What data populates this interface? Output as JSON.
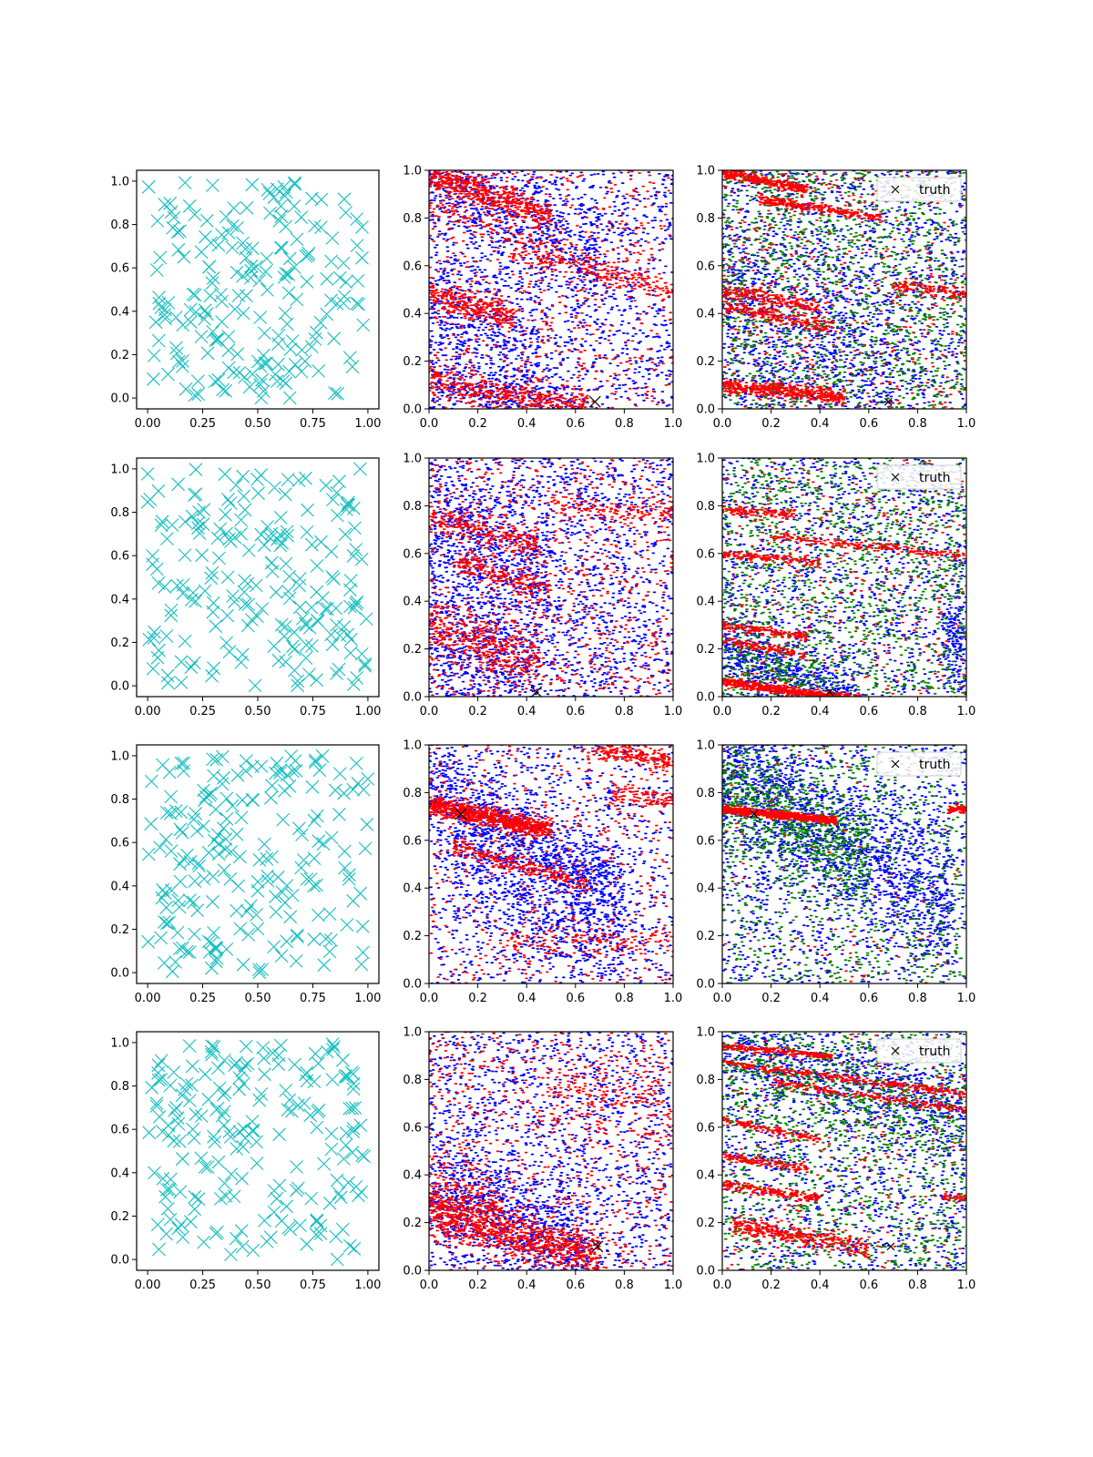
{
  "figure": {
    "rows": 4,
    "cols": 3
  },
  "colors": {
    "cyan": "#17bfbf",
    "blue": "#0000ff",
    "red": "#ff0000",
    "green": "#008000",
    "truth": "#000000"
  },
  "chart_data": [
    {
      "type": "scatter",
      "row": 1,
      "col": 1,
      "marker": "x",
      "color": "#17bfbf",
      "n_points": 200,
      "seed": 101,
      "xlim": [
        -0.05,
        1.05
      ],
      "ylim": [
        -0.05,
        1.05
      ],
      "xticks": [
        "0.00",
        "0.25",
        "0.50",
        "0.75",
        "1.00"
      ],
      "yticks": [
        "0.0",
        "0.2",
        "0.4",
        "0.6",
        "0.8",
        "1.0"
      ]
    },
    {
      "type": "scatter",
      "row": 1,
      "col": 2,
      "marker": "dot",
      "seed": 102,
      "xlim": [
        0,
        1
      ],
      "ylim": [
        0,
        1
      ],
      "xticks": [
        "0.0",
        "0.2",
        "0.4",
        "0.6",
        "0.8",
        "1.0"
      ],
      "yticks": [
        "0.0",
        "0.2",
        "0.4",
        "0.6",
        "0.8",
        "1.0"
      ],
      "series": [
        {
          "name": "blue",
          "color": "#0000ff",
          "uniform": 1400,
          "bands": [
            {
              "y0": 1.0,
              "slope": -0.55,
              "xmin": 0,
              "xmax": 0.7,
              "spread": 0.12,
              "n": 500
            },
            {
              "y0": 0.45,
              "slope": -0.6,
              "xmin": 0,
              "xmax": 0.45,
              "spread": 0.15,
              "n": 350
            },
            {
              "y0": 0.12,
              "slope": -0.25,
              "xmin": 0,
              "xmax": 0.6,
              "spread": 0.06,
              "n": 300
            }
          ]
        },
        {
          "name": "red",
          "color": "#ff0000",
          "uniform": 700,
          "bands": [
            {
              "y0": 0.98,
              "slope": -0.35,
              "xmin": 0,
              "xmax": 0.5,
              "spread": 0.03,
              "n": 500
            },
            {
              "y0": 0.48,
              "slope": -0.3,
              "xmin": 0,
              "xmax": 0.35,
              "spread": 0.03,
              "n": 300
            },
            {
              "y0": 0.12,
              "slope": -0.2,
              "xmin": 0,
              "xmax": 0.65,
              "spread": 0.04,
              "n": 450
            },
            {
              "y0": 0.85,
              "slope": -0.35,
              "xmin": 0,
              "xmax": 1,
              "spread": 0.02,
              "n": 150
            },
            {
              "y0": 0.74,
              "slope": -0.25,
              "xmin": 0.3,
              "xmax": 1,
              "spread": 0.02,
              "n": 150
            }
          ]
        }
      ],
      "truth": {
        "x": 0.68,
        "y": 0.03,
        "size": "large"
      }
    },
    {
      "type": "scatter",
      "row": 1,
      "col": 3,
      "marker": "dot",
      "seed": 103,
      "xlim": [
        0,
        1
      ],
      "ylim": [
        0,
        1
      ],
      "xticks": [
        "0.0",
        "0.2",
        "0.4",
        "0.6",
        "0.8",
        "1.0"
      ],
      "yticks": [
        "0.0",
        "0.2",
        "0.4",
        "0.6",
        "0.8",
        "1.0"
      ],
      "series": [
        {
          "name": "blue",
          "color": "#0000ff",
          "uniform": 1500,
          "bands": [
            {
              "y0": 0.5,
              "slope": -0.5,
              "xmin": 0,
              "xmax": 0.7,
              "spread": 0.2,
              "n": 500
            }
          ]
        },
        {
          "name": "green",
          "color": "#008000",
          "uniform": 1500,
          "bands": []
        },
        {
          "name": "red",
          "color": "#ff0000",
          "uniform": 500,
          "bands": [
            {
              "y0": 0.99,
              "slope": -0.2,
              "xmin": 0,
              "xmax": 0.35,
              "spread": 0.01,
              "n": 300
            },
            {
              "y0": 0.9,
              "slope": -0.15,
              "xmin": 0.15,
              "xmax": 0.65,
              "spread": 0.01,
              "n": 250
            },
            {
              "y0": 0.5,
              "slope": -0.2,
              "xmin": 0,
              "xmax": 0.4,
              "spread": 0.015,
              "n": 200
            },
            {
              "y0": 0.43,
              "slope": -0.2,
              "xmin": 0,
              "xmax": 0.45,
              "spread": 0.015,
              "n": 200
            },
            {
              "y0": 0.1,
              "slope": -0.1,
              "xmin": 0,
              "xmax": 0.5,
              "spread": 0.015,
              "n": 450
            },
            {
              "y0": 0.6,
              "slope": -0.12,
              "xmin": 0.7,
              "xmax": 1,
              "spread": 0.015,
              "n": 120
            }
          ]
        }
      ],
      "truth": {
        "x": 0.68,
        "y": 0.03,
        "size": "small"
      },
      "legend": {
        "label": "truth",
        "position": "top-right"
      }
    },
    {
      "type": "scatter",
      "row": 2,
      "col": 1,
      "marker": "x",
      "color": "#17bfbf",
      "n_points": 200,
      "seed": 201,
      "xlim": [
        -0.05,
        1.05
      ],
      "ylim": [
        -0.05,
        1.05
      ],
      "xticks": [
        "0.00",
        "0.25",
        "0.50",
        "0.75",
        "1.00"
      ],
      "yticks": [
        "0.0",
        "0.2",
        "0.4",
        "0.6",
        "0.8",
        "1.0"
      ]
    },
    {
      "type": "scatter",
      "row": 2,
      "col": 2,
      "marker": "dot",
      "seed": 202,
      "xlim": [
        0,
        1
      ],
      "ylim": [
        0,
        1
      ],
      "xticks": [
        "0.0",
        "0.2",
        "0.4",
        "0.6",
        "0.8",
        "1.0"
      ],
      "yticks": [
        "0.0",
        "0.2",
        "0.4",
        "0.6",
        "0.8",
        "1.0"
      ],
      "series": [
        {
          "name": "blue",
          "color": "#0000ff",
          "uniform": 1800,
          "bands": [
            {
              "y0": 0.7,
              "slope": -0.4,
              "xmin": 0,
              "xmax": 0.5,
              "spread": 0.15,
              "n": 400
            },
            {
              "y0": 0.25,
              "slope": -0.4,
              "xmin": 0,
              "xmax": 0.45,
              "spread": 0.12,
              "n": 300
            }
          ]
        },
        {
          "name": "red",
          "color": "#ff0000",
          "uniform": 800,
          "bands": [
            {
              "y0": 0.75,
              "slope": -0.25,
              "xmin": 0,
              "xmax": 0.45,
              "spread": 0.03,
              "n": 250
            },
            {
              "y0": 0.6,
              "slope": -0.3,
              "xmin": 0.1,
              "xmax": 0.5,
              "spread": 0.03,
              "n": 200
            },
            {
              "y0": 0.3,
              "slope": -0.35,
              "xmin": 0,
              "xmax": 0.45,
              "spread": 0.06,
              "n": 400
            },
            {
              "y0": 0.86,
              "slope": -0.1,
              "xmin": 0.5,
              "xmax": 1,
              "spread": 0.02,
              "n": 120
            }
          ]
        }
      ],
      "truth": {
        "x": 0.44,
        "y": 0.02,
        "size": "large"
      }
    },
    {
      "type": "scatter",
      "row": 2,
      "col": 3,
      "marker": "dot",
      "seed": 203,
      "xlim": [
        0,
        1
      ],
      "ylim": [
        0,
        1
      ],
      "xticks": [
        "0.0",
        "0.2",
        "0.4",
        "0.6",
        "0.8",
        "1.0"
      ],
      "yticks": [
        "0.0",
        "0.2",
        "0.4",
        "0.6",
        "0.8",
        "1.0"
      ],
      "series": [
        {
          "name": "blue",
          "color": "#0000ff",
          "uniform": 1300,
          "bands": [
            {
              "y0": 0.2,
              "slope": -0.4,
              "xmin": 0,
              "xmax": 0.55,
              "spread": 0.08,
              "n": 500
            },
            {
              "y0": 0.25,
              "slope": 0,
              "xmin": 0.9,
              "xmax": 1,
              "spread": 0.12,
              "n": 150
            }
          ]
        },
        {
          "name": "green",
          "color": "#008000",
          "uniform": 1400,
          "bands": [
            {
              "y0": 0.15,
              "slope": -0.3,
              "xmin": 0,
              "xmax": 0.4,
              "spread": 0.1,
              "n": 200
            }
          ]
        },
        {
          "name": "red",
          "color": "#ff0000",
          "uniform": 350,
          "bands": [
            {
              "y0": 0.06,
              "slope": -0.13,
              "xmin": 0,
              "xmax": 0.6,
              "spread": 0.01,
              "n": 600
            },
            {
              "y0": 0.78,
              "slope": -0.05,
              "xmin": 0,
              "xmax": 0.3,
              "spread": 0.01,
              "n": 120
            },
            {
              "y0": 0.69,
              "slope": -0.1,
              "xmin": 0.2,
              "xmax": 1,
              "spread": 0.01,
              "n": 200
            },
            {
              "y0": 0.6,
              "slope": -0.1,
              "xmin": 0,
              "xmax": 0.4,
              "spread": 0.01,
              "n": 150
            },
            {
              "y0": 0.3,
              "slope": -0.15,
              "xmin": 0,
              "xmax": 0.35,
              "spread": 0.01,
              "n": 150
            },
            {
              "y0": 0.24,
              "slope": -0.2,
              "xmin": 0,
              "xmax": 0.35,
              "spread": 0.01,
              "n": 120
            }
          ]
        }
      ],
      "truth": {
        "x": 0.44,
        "y": 0.02,
        "size": "small"
      },
      "legend": {
        "label": "truth",
        "position": "top-right"
      }
    },
    {
      "type": "scatter",
      "row": 3,
      "col": 1,
      "marker": "x",
      "color": "#17bfbf",
      "n_points": 200,
      "seed": 301,
      "xlim": [
        -0.05,
        1.05
      ],
      "ylim": [
        -0.05,
        1.05
      ],
      "xticks": [
        "0.00",
        "0.25",
        "0.50",
        "0.75",
        "1.00"
      ],
      "yticks": [
        "0.0",
        "0.2",
        "0.4",
        "0.6",
        "0.8",
        "1.0"
      ]
    },
    {
      "type": "scatter",
      "row": 3,
      "col": 2,
      "marker": "dot",
      "seed": 302,
      "xlim": [
        0,
        1
      ],
      "ylim": [
        0,
        1
      ],
      "xticks": [
        "0.0",
        "0.2",
        "0.4",
        "0.6",
        "0.8",
        "1.0"
      ],
      "yticks": [
        "0.0",
        "0.2",
        "0.4",
        "0.6",
        "0.8",
        "1.0"
      ],
      "series": [
        {
          "name": "blue",
          "color": "#0000ff",
          "uniform": 1100,
          "bands": [
            {
              "y0": 0.85,
              "slope": -0.6,
              "xmin": 0,
              "xmax": 0.8,
              "spread": 0.1,
              "n": 900
            },
            {
              "y0": 0.55,
              "slope": -0.5,
              "xmin": 0.1,
              "xmax": 0.8,
              "spread": 0.12,
              "n": 500
            }
          ]
        },
        {
          "name": "red",
          "color": "#ff0000",
          "uniform": 500,
          "bands": [
            {
              "y0": 0.75,
              "slope": -0.22,
              "xmin": 0,
              "xmax": 0.5,
              "spread": 0.02,
              "n": 800
            },
            {
              "y0": 0.6,
              "slope": -0.28,
              "xmin": 0.1,
              "xmax": 0.65,
              "spread": 0.02,
              "n": 250
            },
            {
              "y0": 1.08,
              "slope": -0.15,
              "xmin": 0.65,
              "xmax": 1,
              "spread": 0.02,
              "n": 200
            },
            {
              "y0": 0.88,
              "slope": -0.12,
              "xmin": 0.75,
              "xmax": 1,
              "spread": 0.02,
              "n": 100
            },
            {
              "y0": 0.18,
              "slope": 0,
              "xmin": 0.3,
              "xmax": 1,
              "spread": 0.03,
              "n": 150
            }
          ]
        }
      ],
      "truth": {
        "x": 0.13,
        "y": 0.71,
        "size": "large"
      }
    },
    {
      "type": "scatter",
      "row": 3,
      "col": 3,
      "marker": "dot",
      "seed": 303,
      "xlim": [
        0,
        1
      ],
      "ylim": [
        0,
        1
      ],
      "xticks": [
        "0.0",
        "0.2",
        "0.4",
        "0.6",
        "0.8",
        "1.0"
      ],
      "yticks": [
        "0.0",
        "0.2",
        "0.4",
        "0.6",
        "0.8",
        "1.0"
      ],
      "series": [
        {
          "name": "blue",
          "color": "#0000ff",
          "uniform": 1200,
          "bands": [
            {
              "y0": 0.9,
              "slope": -0.6,
              "xmin": 0,
              "xmax": 0.95,
              "spread": 0.15,
              "n": 1300
            }
          ]
        },
        {
          "name": "green",
          "color": "#008000",
          "uniform": 900,
          "bands": [
            {
              "y0": 0.85,
              "slope": -0.55,
              "xmin": 0,
              "xmax": 0.6,
              "spread": 0.12,
              "n": 700
            }
          ]
        },
        {
          "name": "red",
          "color": "#ff0000",
          "uniform": 100,
          "bands": [
            {
              "y0": 0.73,
              "slope": -0.1,
              "xmin": 0,
              "xmax": 0.47,
              "spread": 0.008,
              "n": 700
            },
            {
              "y0": 0.73,
              "slope": 0,
              "xmin": 0.93,
              "xmax": 1,
              "spread": 0.008,
              "n": 60
            }
          ]
        }
      ],
      "truth": {
        "x": 0.13,
        "y": 0.71,
        "size": "small"
      },
      "legend": {
        "label": "truth",
        "position": "top-right"
      }
    },
    {
      "type": "scatter",
      "row": 4,
      "col": 1,
      "marker": "x",
      "color": "#17bfbf",
      "n_points": 200,
      "seed": 401,
      "xlim": [
        -0.05,
        1.05
      ],
      "ylim": [
        -0.05,
        1.05
      ],
      "xticks": [
        "0.00",
        "0.25",
        "0.50",
        "0.75",
        "1.00"
      ],
      "yticks": [
        "0.0",
        "0.2",
        "0.4",
        "0.6",
        "0.8",
        "1.0"
      ]
    },
    {
      "type": "scatter",
      "row": 4,
      "col": 2,
      "marker": "dot",
      "seed": 402,
      "xlim": [
        0,
        1
      ],
      "ylim": [
        0,
        1
      ],
      "xticks": [
        "0.0",
        "0.2",
        "0.4",
        "0.6",
        "0.8",
        "1.0"
      ],
      "yticks": [
        "0.0",
        "0.2",
        "0.4",
        "0.6",
        "0.8",
        "1.0"
      ],
      "series": [
        {
          "name": "blue",
          "color": "#0000ff",
          "uniform": 1500,
          "bands": [
            {
              "y0": 0.35,
              "slope": -0.4,
              "xmin": 0,
              "xmax": 0.65,
              "spread": 0.12,
              "n": 700
            }
          ]
        },
        {
          "name": "red",
          "color": "#ff0000",
          "uniform": 700,
          "bands": [
            {
              "y0": 0.25,
              "slope": -0.28,
              "xmin": 0,
              "xmax": 0.7,
              "spread": 0.05,
              "n": 900
            },
            {
              "y0": 0.35,
              "slope": -0.3,
              "xmin": 0,
              "xmax": 0.3,
              "spread": 0.08,
              "n": 200
            },
            {
              "y0": 0.8,
              "slope": -0.1,
              "xmin": 0.5,
              "xmax": 1,
              "spread": 0.08,
              "n": 200
            }
          ]
        }
      ],
      "truth": {
        "x": 0.69,
        "y": 0.1,
        "size": "large"
      }
    },
    {
      "type": "scatter",
      "row": 4,
      "col": 3,
      "marker": "dot",
      "seed": 403,
      "xlim": [
        0,
        1
      ],
      "ylim": [
        0,
        1
      ],
      "xticks": [
        "0.0",
        "0.2",
        "0.4",
        "0.6",
        "0.8",
        "1.0"
      ],
      "yticks": [
        "0.0",
        "0.2",
        "0.4",
        "0.6",
        "0.8",
        "1.0"
      ],
      "series": [
        {
          "name": "blue",
          "color": "#0000ff",
          "uniform": 1200,
          "bands": [
            {
              "y0": 0.95,
              "slope": -0.3,
              "xmin": 0,
              "xmax": 1,
              "spread": 0.1,
              "n": 600
            }
          ]
        },
        {
          "name": "green",
          "color": "#008000",
          "uniform": 1200,
          "bands": [
            {
              "y0": 0.9,
              "slope": -0.3,
              "xmin": 0,
              "xmax": 1,
              "spread": 0.1,
              "n": 400
            }
          ]
        },
        {
          "name": "red",
          "color": "#ff0000",
          "uniform": 250,
          "bands": [
            {
              "y0": 0.94,
              "slope": -0.1,
              "xmin": 0,
              "xmax": 0.45,
              "spread": 0.008,
              "n": 200
            },
            {
              "y0": 0.87,
              "slope": -0.13,
              "xmin": 0,
              "xmax": 1,
              "spread": 0.008,
              "n": 300
            },
            {
              "y0": 0.82,
              "slope": -0.15,
              "xmin": 0.2,
              "xmax": 1,
              "spread": 0.008,
              "n": 200
            },
            {
              "y0": 0.63,
              "slope": -0.2,
              "xmin": 0,
              "xmax": 0.4,
              "spread": 0.01,
              "n": 120
            },
            {
              "y0": 0.48,
              "slope": -0.15,
              "xmin": 0,
              "xmax": 0.35,
              "spread": 0.01,
              "n": 120
            },
            {
              "y0": 0.36,
              "slope": -0.15,
              "xmin": 0,
              "xmax": 0.4,
              "spread": 0.01,
              "n": 200
            },
            {
              "y0": 0.2,
              "slope": -0.18,
              "xmin": 0.05,
              "xmax": 0.6,
              "spread": 0.02,
              "n": 350
            },
            {
              "y0": 0.4,
              "slope": -0.1,
              "xmin": 0.9,
              "xmax": 1,
              "spread": 0.01,
              "n": 40
            }
          ]
        }
      ],
      "truth": {
        "x": 0.69,
        "y": 0.1,
        "size": "small"
      },
      "legend": {
        "label": "truth",
        "position": "top-right"
      }
    }
  ]
}
